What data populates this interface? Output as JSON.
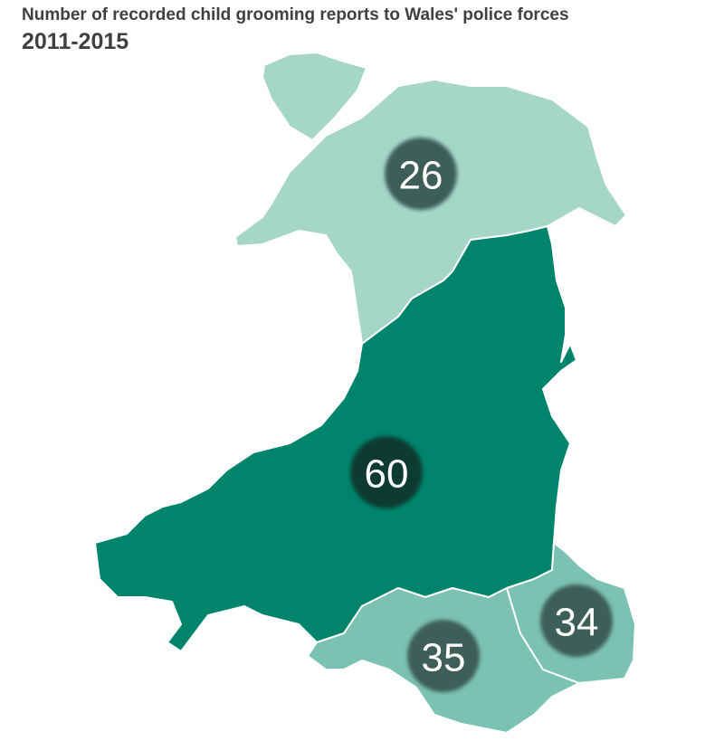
{
  "title": "Number of recorded child grooming reports to Wales' police forces",
  "subtitle": "2011-2015",
  "colors": {
    "north_wales": "#a6d6c8",
    "dyfed_powys": "#00846b",
    "south_wales": "#7cc2b2",
    "gwent": "#7cc2b2",
    "marker": "#3e5f58",
    "marker_highest": "#0d3a30"
  },
  "regions": [
    {
      "id": "north-wales",
      "value": "26"
    },
    {
      "id": "dyfed-powys",
      "value": "60"
    },
    {
      "id": "gwent",
      "value": "34"
    },
    {
      "id": "south-wales",
      "value": "35"
    }
  ]
}
